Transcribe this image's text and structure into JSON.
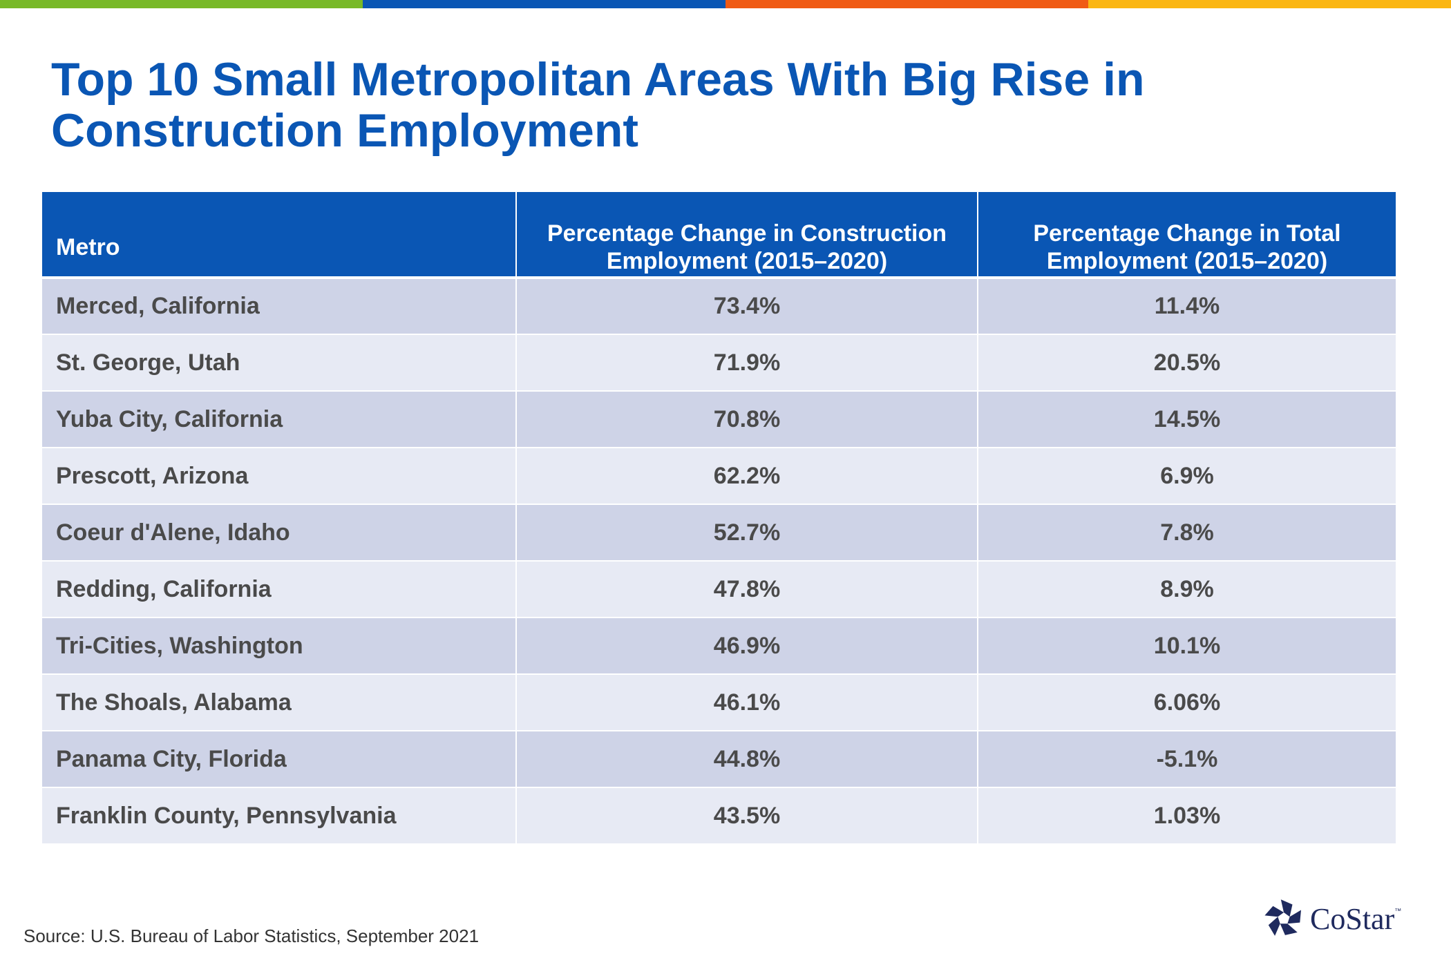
{
  "colors": {
    "stripe": [
      "#78b927",
      "#0a56b4",
      "#f05a14",
      "#fbb612"
    ],
    "title": "#0a56b4",
    "header_bg": "#0a56b4",
    "row_odd": "#ced3e7",
    "row_even": "#e7eaf4",
    "logo": "#1f2a5e"
  },
  "title": "Top 10 Small Metropolitan Areas With Big Rise in Construction Employment",
  "table": {
    "headers": [
      "Metro",
      "Percentage Change in Construction Employment (2015–2020)",
      "Percentage Change in Total Employment (2015–2020)"
    ],
    "rows": [
      [
        "Merced, California",
        "73.4%",
        "11.4%"
      ],
      [
        "St. George, Utah",
        "71.9%",
        "20.5%"
      ],
      [
        "Yuba City, California",
        "70.8%",
        "14.5%"
      ],
      [
        "Prescott, Arizona",
        "62.2%",
        "6.9%"
      ],
      [
        "Coeur d'Alene, Idaho",
        "52.7%",
        "7.8%"
      ],
      [
        "Redding, California",
        "47.8%",
        "8.9%"
      ],
      [
        "Tri-Cities, Washington",
        "46.9%",
        "10.1%"
      ],
      [
        "The Shoals, Alabama",
        "46.1%",
        "6.06%"
      ],
      [
        "Panama City, Florida",
        "44.8%",
        "-5.1%"
      ],
      [
        "Franklin County, Pennsylvania",
        "43.5%",
        "1.03%"
      ]
    ]
  },
  "source": "Source: U.S. Bureau of Labor Statistics, September 2021",
  "logo": {
    "text": "CoStar",
    "tm": "™",
    "icon": "costar-star-icon"
  }
}
